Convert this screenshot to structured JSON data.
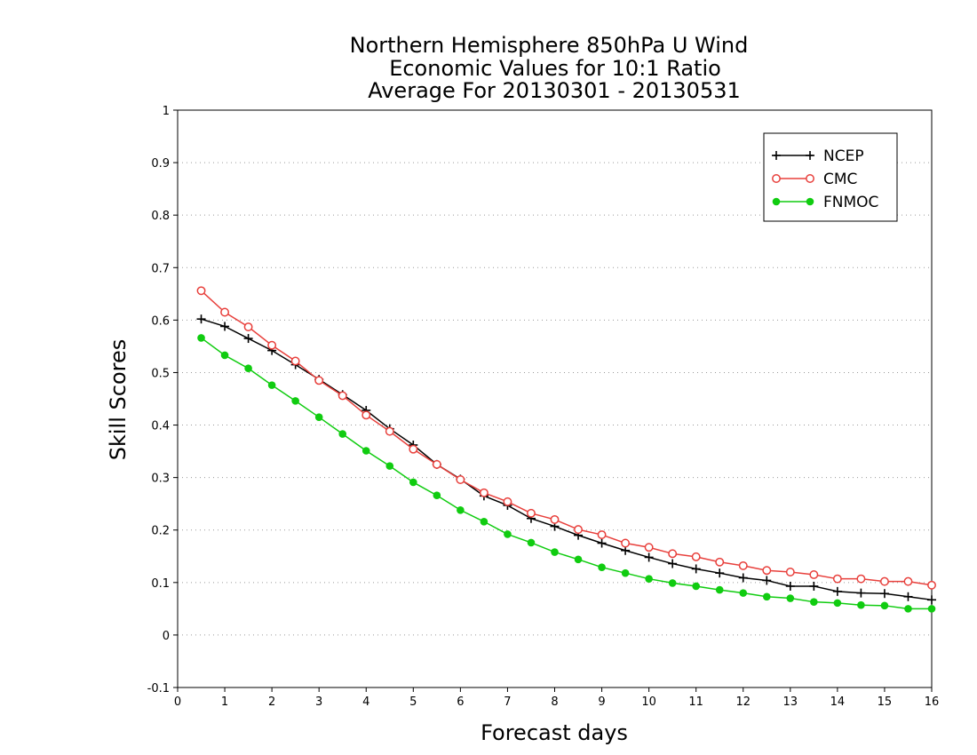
{
  "chart_data": {
    "type": "line",
    "title_lines": [
      "Northern Hemisphere 850hPa U Wind",
      "Economic Values for 10:1 Ratio",
      "Average For 20130301 - 20130531"
    ],
    "xlabel": "Forecast days",
    "ylabel": "Skill Scores",
    "xlim": [
      0,
      16
    ],
    "ylim": [
      -0.1,
      1
    ],
    "xticks": [
      "0",
      "1",
      "2",
      "3",
      "4",
      "5",
      "6",
      "7",
      "8",
      "9",
      "10",
      "11",
      "12",
      "13",
      "14",
      "15",
      "16"
    ],
    "yticks": [
      "-0.1",
      "0",
      "0.1",
      "0.2",
      "0.3",
      "0.4",
      "0.5",
      "0.6",
      "0.7",
      "0.8",
      "0.9",
      "1"
    ],
    "grid": "horizontal dotted",
    "legend_position": "top-right",
    "x": [
      0.5,
      1,
      1.5,
      2,
      2.5,
      3,
      3.5,
      4,
      4.5,
      5,
      5.5,
      6,
      6.5,
      7,
      7.5,
      8,
      8.5,
      9,
      9.5,
      10,
      10.5,
      11,
      11.5,
      12,
      12.5,
      13,
      13.5,
      14,
      14.5,
      15,
      15.5,
      16
    ],
    "series": [
      {
        "name": "NCEP",
        "color": "#000000",
        "marker": "plus",
        "values": [
          0.602,
          0.588,
          0.565,
          0.542,
          0.515,
          0.487,
          0.458,
          0.428,
          0.393,
          0.362,
          0.325,
          0.297,
          0.265,
          0.247,
          0.222,
          0.207,
          0.19,
          0.175,
          0.161,
          0.148,
          0.136,
          0.126,
          0.118,
          0.109,
          0.104,
          0.093,
          0.093,
          0.083,
          0.08,
          0.079,
          0.073,
          0.067
        ]
      },
      {
        "name": "CMC",
        "color": "#e8403c",
        "marker": "open-circle",
        "values": [
          0.656,
          0.615,
          0.587,
          0.552,
          0.522,
          0.485,
          0.456,
          0.419,
          0.388,
          0.354,
          0.325,
          0.296,
          0.271,
          0.254,
          0.232,
          0.22,
          0.201,
          0.191,
          0.175,
          0.167,
          0.155,
          0.149,
          0.139,
          0.132,
          0.123,
          0.12,
          0.115,
          0.107,
          0.107,
          0.102,
          0.102,
          0.095
        ]
      },
      {
        "name": "FNMOC",
        "color": "#10cc10",
        "marker": "filled-circle",
        "values": [
          0.566,
          0.533,
          0.508,
          0.476,
          0.446,
          0.415,
          0.383,
          0.351,
          0.322,
          0.291,
          0.266,
          0.238,
          0.216,
          0.192,
          0.176,
          0.158,
          0.144,
          0.129,
          0.118,
          0.107,
          0.099,
          0.093,
          0.086,
          0.08,
          0.073,
          0.07,
          0.063,
          0.061,
          0.057,
          0.056,
          0.05,
          0.05
        ]
      }
    ]
  }
}
